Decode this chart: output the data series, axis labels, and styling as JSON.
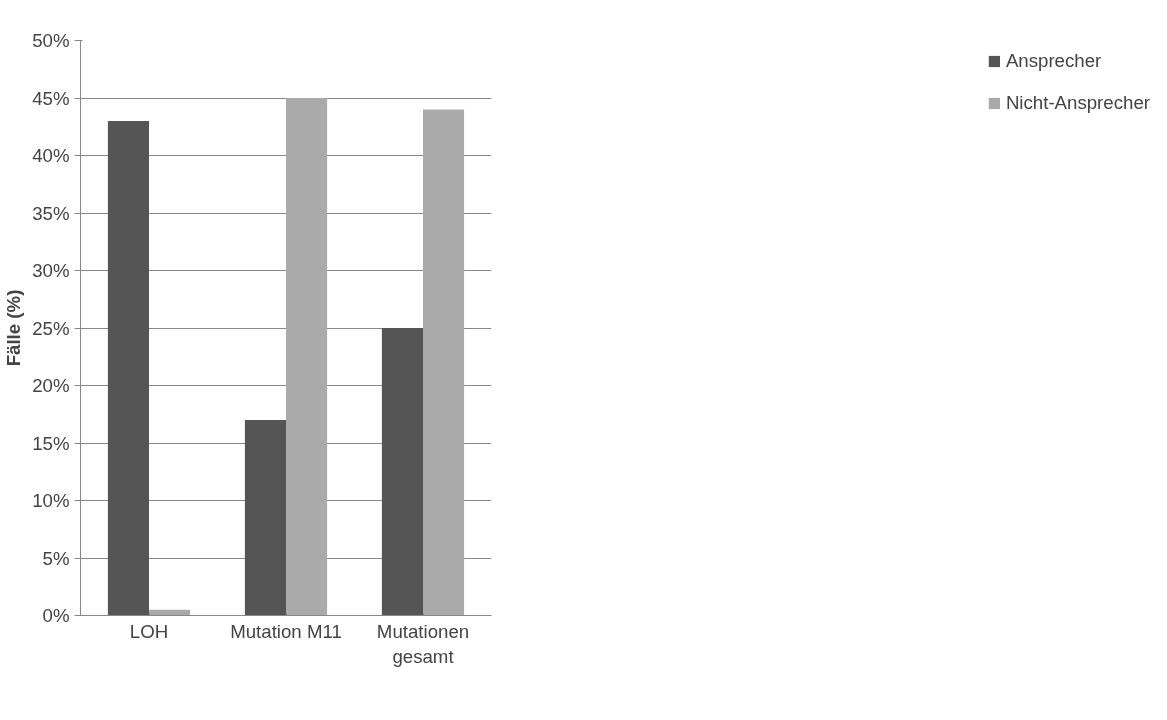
{
  "chart_data": {
    "type": "bar",
    "ylabel": "Fälle (%)",
    "categories": [
      "LOH",
      "Mutation M11",
      "Mutationen gesamt"
    ],
    "series": [
      {
        "name": "Ansprecher",
        "color": "#555555",
        "values": [
          43,
          17,
          25
        ]
      },
      {
        "name": "Nicht-Ansprecher",
        "color": "#aaaaaa",
        "values": [
          0.5,
          45,
          44
        ]
      }
    ],
    "ylim": [
      0,
      50
    ],
    "yticks": [
      {
        "value": 0,
        "label": "0%"
      },
      {
        "value": 5,
        "label": "5%"
      },
      {
        "value": 10,
        "label": "10%"
      },
      {
        "value": 15,
        "label": "15%"
      },
      {
        "value": 20,
        "label": "20%"
      },
      {
        "value": 25,
        "label": "25%"
      },
      {
        "value": 30,
        "label": "30%"
      },
      {
        "value": 35,
        "label": "35%"
      },
      {
        "value": 40,
        "label": "40%"
      },
      {
        "value": 45,
        "label": "45%"
      },
      {
        "value": 50,
        "label": "50%"
      }
    ],
    "grid": "y",
    "legend": "right"
  }
}
